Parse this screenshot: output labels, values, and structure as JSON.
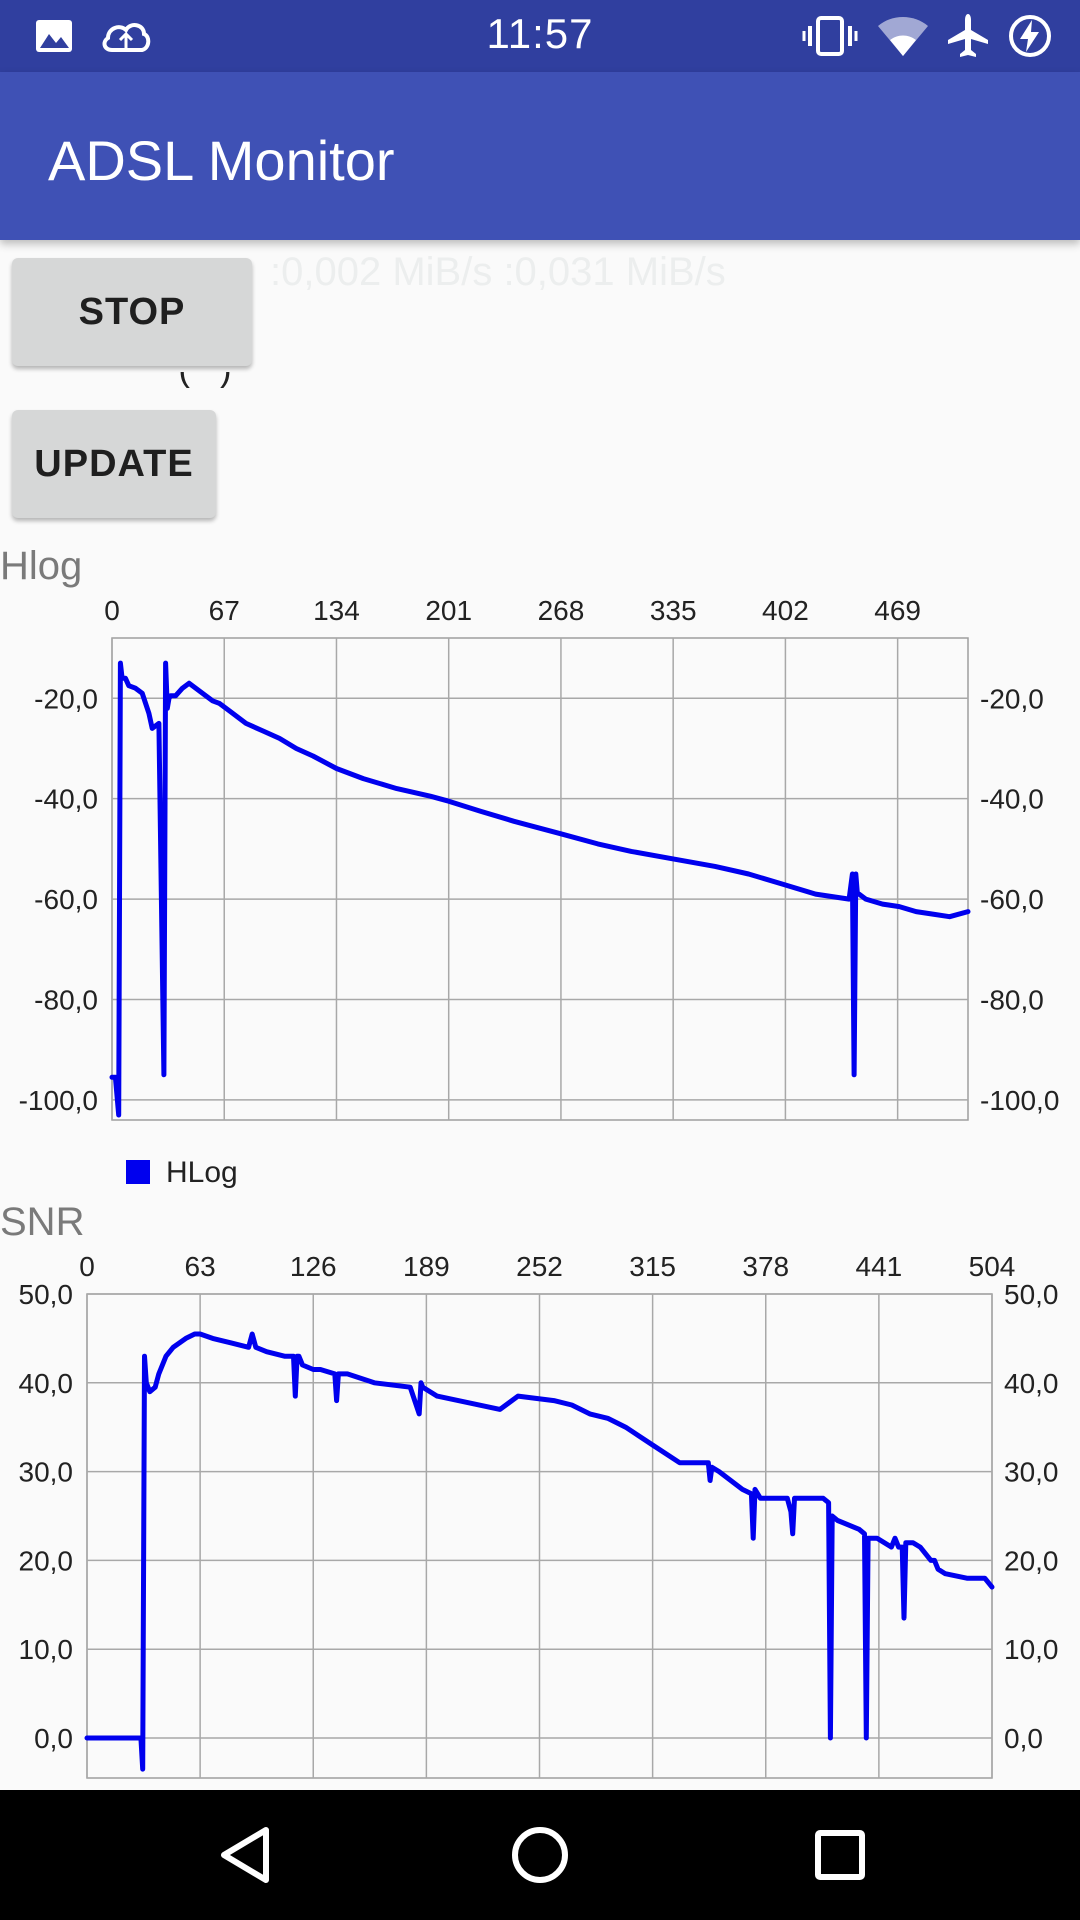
{
  "status_bar": {
    "time": "11:57",
    "icons": [
      "image-icon",
      "cloud-sync-icon",
      "vibrate-icon",
      "wifi-icon",
      "airplane-mode-icon",
      "battery-charging-icon"
    ]
  },
  "app_bar": {
    "title": "ADSL Monitor"
  },
  "controls": {
    "stop_label": "STOP",
    "update_label": "UPDATE",
    "rates_text": ":0,002 MiB/s :0,031 MiB/s",
    "clipped_text": "ᐧ  ᐧ ( ᐧ )"
  },
  "colors": {
    "line": "#0000ee",
    "app_bar": "#3f51b5",
    "status_bar": "#303f9f"
  },
  "hlog": {
    "title": "Hlog",
    "legend": "HLog",
    "chart_data": {
      "type": "line",
      "title": "Hlog",
      "x_ticks": [
        "0",
        "67",
        "134",
        "201",
        "268",
        "335",
        "402",
        "469"
      ],
      "y_ticks_left": [
        "-20,0",
        "-40,0",
        "-60,0",
        "-80,0",
        "-100,0"
      ],
      "y_ticks_right": [
        "-20,0",
        "-40,0",
        "-60,0",
        "-80,0",
        "-100,0"
      ],
      "xlim": [
        0,
        511
      ],
      "ylim": [
        -104,
        -8
      ],
      "x_axis_position": "top",
      "grid": true,
      "legend_position": "bottom-left",
      "series": [
        {
          "name": "HLog",
          "x": [
            0,
            2,
            4,
            5,
            6,
            8,
            10,
            14,
            18,
            22,
            24,
            28,
            31,
            32,
            33,
            34,
            35,
            38,
            42,
            46,
            50,
            56,
            60,
            64,
            70,
            80,
            90,
            100,
            110,
            120,
            134,
            150,
            170,
            190,
            201,
            220,
            240,
            268,
            290,
            310,
            335,
            360,
            380,
            400,
            420,
            440,
            442,
            443,
            444,
            445,
            446,
            450,
            460,
            470,
            480,
            490,
            500,
            511
          ],
          "y": [
            -95.5,
            -95.5,
            -103,
            -13,
            -16,
            -16,
            -17.5,
            -18,
            -19,
            -23,
            -26,
            -25,
            -95,
            -13,
            -22,
            -20,
            -19.5,
            -19.5,
            -18,
            -17,
            -18,
            -19.5,
            -20.5,
            -21,
            -22.5,
            -25,
            -26.5,
            -28,
            -30,
            -31.5,
            -34,
            -36,
            -38,
            -39.5,
            -40.5,
            -42.5,
            -44.5,
            -47,
            -49,
            -50.5,
            -52,
            -53.5,
            -55,
            -57,
            -59,
            -60,
            -55,
            -95,
            -55,
            -59,
            -59,
            -60,
            -61,
            -61.5,
            -62.5,
            -63,
            -63.5,
            -62.5
          ]
        }
      ]
    }
  },
  "snr": {
    "title": "SNR",
    "chart_data": {
      "type": "line",
      "title": "SNR",
      "x_ticks": [
        "0",
        "63",
        "126",
        "189",
        "252",
        "315",
        "378",
        "441",
        "504"
      ],
      "y_ticks_left": [
        "50,0",
        "40,0",
        "30,0",
        "20,0",
        "10,0",
        "0,0"
      ],
      "y_ticks_right": [
        "50,0",
        "40,0",
        "30,0",
        "20,0",
        "10,0",
        "0,0"
      ],
      "xlim": [
        0,
        504
      ],
      "ylim": [
        -4.5,
        50
      ],
      "x_axis_position": "top",
      "grid": true,
      "series": [
        {
          "name": "",
          "x": [
            0,
            30,
            31,
            32,
            33,
            35,
            38,
            40,
            44,
            48,
            55,
            60,
            63,
            70,
            80,
            90,
            92,
            94,
            100,
            110,
            115,
            116,
            117,
            118,
            120,
            126,
            130,
            138,
            139,
            140,
            145,
            160,
            180,
            185,
            186,
            187,
            195,
            230,
            240,
            260,
            270,
            280,
            290,
            300,
            315,
            330,
            340,
            346,
            347,
            348,
            352,
            365,
            370,
            371,
            372,
            375,
            390,
            392,
            393,
            394,
            398,
            410,
            413,
            414,
            415,
            418,
            430,
            433,
            434,
            435,
            440,
            448,
            450,
            452,
            454,
            455,
            456,
            460,
            464,
            470,
            472,
            473,
            474,
            478,
            490,
            500,
            504
          ],
          "y": [
            0,
            0,
            -3.5,
            43,
            40,
            39,
            39.5,
            41,
            43,
            44,
            45,
            45.5,
            45.5,
            45,
            44.5,
            44,
            45.5,
            44,
            43.5,
            43,
            43,
            38.5,
            43,
            43,
            42,
            41.5,
            41.5,
            41,
            38,
            41,
            41,
            40,
            39.5,
            36.5,
            40,
            39.5,
            38.5,
            37,
            38.5,
            38,
            37.5,
            36.5,
            36,
            35,
            33,
            31,
            31,
            31,
            29,
            30.5,
            30,
            28,
            27.5,
            22.5,
            28,
            27,
            27,
            25.5,
            23,
            27,
            27,
            27,
            26.5,
            0,
            25,
            24.5,
            23.5,
            23,
            0,
            22.5,
            22.5,
            21.5,
            22.5,
            21.5,
            21.5,
            13.5,
            22,
            22,
            21.5,
            20,
            20,
            19.5,
            19,
            18.5,
            18,
            18,
            17
          ]
        }
      ]
    }
  }
}
